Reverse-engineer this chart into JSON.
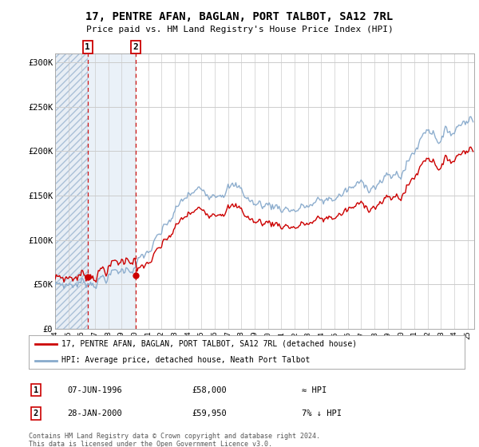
{
  "title": "17, PENTRE AFAN, BAGLAN, PORT TALBOT, SA12 7RL",
  "subtitle": "Price paid vs. HM Land Registry's House Price Index (HPI)",
  "red_line_label": "17, PENTRE AFAN, BAGLAN, PORT TALBOT, SA12 7RL (detached house)",
  "blue_line_label": "HPI: Average price, detached house, Neath Port Talbot",
  "annotation1_date": "07-JUN-1996",
  "annotation1_price": "£58,000",
  "annotation1_hpi": "≈ HPI",
  "annotation2_date": "28-JAN-2000",
  "annotation2_price": "£59,950",
  "annotation2_hpi": "7% ↓ HPI",
  "footer": "Contains HM Land Registry data © Crown copyright and database right 2024.\nThis data is licensed under the Open Government Licence v3.0.",
  "ylim": [
    0,
    310000
  ],
  "yticks": [
    0,
    50000,
    100000,
    150000,
    200000,
    250000,
    300000
  ],
  "ytick_labels": [
    "£0",
    "£50K",
    "£100K",
    "£150K",
    "£200K",
    "£250K",
    "£300K"
  ],
  "sale1_x": 1996.44,
  "sale1_y": 58000,
  "sale2_x": 2000.07,
  "sale2_y": 59950,
  "xmin": 1994.0,
  "xmax": 2025.5,
  "background_color": "#ffffff",
  "grid_color": "#cccccc",
  "red_color": "#cc0000",
  "blue_color": "#88aacc"
}
